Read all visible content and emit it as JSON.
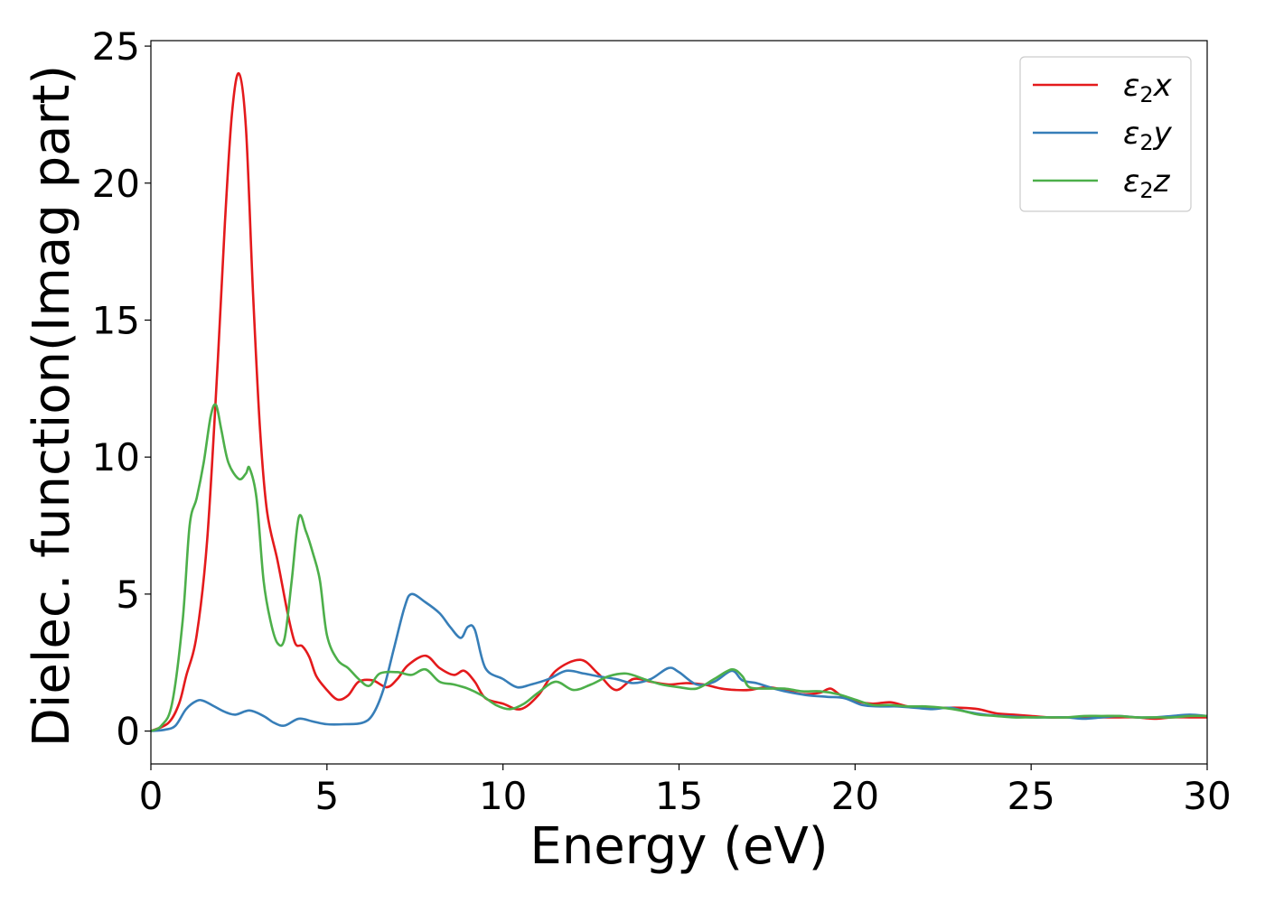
{
  "chart_data": {
    "type": "line",
    "xlabel": "Energy (eV)",
    "ylabel": "Dielec. function(Imag part)",
    "xlim": [
      0,
      30
    ],
    "ylim": [
      -1.2,
      25.2
    ],
    "xticks": [
      0,
      5,
      10,
      15,
      20,
      25,
      30
    ],
    "yticks": [
      0,
      5,
      10,
      15,
      20,
      25
    ],
    "grid": false,
    "legend_position": "top-right",
    "series": [
      {
        "name_main": "ε",
        "name_sub": "2",
        "name_suffix": "x",
        "color": "#e41a1c",
        "points": [
          [
            0,
            0
          ],
          [
            0.5,
            0.3
          ],
          [
            0.8,
            1.0
          ],
          [
            1.0,
            2.0
          ],
          [
            1.3,
            3.5
          ],
          [
            1.6,
            7.0
          ],
          [
            1.9,
            13.5
          ],
          [
            2.1,
            18.5
          ],
          [
            2.3,
            22.5
          ],
          [
            2.5,
            24.0
          ],
          [
            2.7,
            22.0
          ],
          [
            2.9,
            16.0
          ],
          [
            3.1,
            11.0
          ],
          [
            3.3,
            8.0
          ],
          [
            3.6,
            6.2
          ],
          [
            3.9,
            4.2
          ],
          [
            4.1,
            3.2
          ],
          [
            4.3,
            3.1
          ],
          [
            4.5,
            2.7
          ],
          [
            4.7,
            2.0
          ],
          [
            5.0,
            1.5
          ],
          [
            5.3,
            1.15
          ],
          [
            5.6,
            1.3
          ],
          [
            5.9,
            1.8
          ],
          [
            6.3,
            1.85
          ],
          [
            6.7,
            1.6
          ],
          [
            7.0,
            1.9
          ],
          [
            7.3,
            2.4
          ],
          [
            7.8,
            2.75
          ],
          [
            8.2,
            2.3
          ],
          [
            8.6,
            2.05
          ],
          [
            8.9,
            2.2
          ],
          [
            9.2,
            1.8
          ],
          [
            9.5,
            1.2
          ],
          [
            10.0,
            1.0
          ],
          [
            10.5,
            0.8
          ],
          [
            11.0,
            1.3
          ],
          [
            11.5,
            2.2
          ],
          [
            12.2,
            2.6
          ],
          [
            12.7,
            2.1
          ],
          [
            13.2,
            1.5
          ],
          [
            13.7,
            1.9
          ],
          [
            14.2,
            1.8
          ],
          [
            14.7,
            1.7
          ],
          [
            15.2,
            1.75
          ],
          [
            15.7,
            1.7
          ],
          [
            16.2,
            1.55
          ],
          [
            16.6,
            1.5
          ],
          [
            17.0,
            1.5
          ],
          [
            17.5,
            1.6
          ],
          [
            18.0,
            1.5
          ],
          [
            18.5,
            1.35
          ],
          [
            19.0,
            1.4
          ],
          [
            19.3,
            1.55
          ],
          [
            19.6,
            1.3
          ],
          [
            20.0,
            1.1
          ],
          [
            20.5,
            1.0
          ],
          [
            21.0,
            1.05
          ],
          [
            21.5,
            0.9
          ],
          [
            22.0,
            0.85
          ],
          [
            22.5,
            0.85
          ],
          [
            23.0,
            0.85
          ],
          [
            23.5,
            0.8
          ],
          [
            24.0,
            0.65
          ],
          [
            24.5,
            0.6
          ],
          [
            25.0,
            0.55
          ],
          [
            25.5,
            0.5
          ],
          [
            26.0,
            0.5
          ],
          [
            26.5,
            0.5
          ],
          [
            27.0,
            0.5
          ],
          [
            27.5,
            0.5
          ],
          [
            28.0,
            0.5
          ],
          [
            28.5,
            0.45
          ],
          [
            29.0,
            0.5
          ],
          [
            29.5,
            0.5
          ],
          [
            30.0,
            0.5
          ]
        ]
      },
      {
        "name_main": "ε",
        "name_sub": "2",
        "name_suffix": "y",
        "color": "#377eb8",
        "points": [
          [
            0,
            0
          ],
          [
            0.4,
            0.05
          ],
          [
            0.7,
            0.2
          ],
          [
            1.0,
            0.8
          ],
          [
            1.3,
            1.1
          ],
          [
            1.5,
            1.1
          ],
          [
            1.8,
            0.9
          ],
          [
            2.1,
            0.7
          ],
          [
            2.4,
            0.6
          ],
          [
            2.8,
            0.75
          ],
          [
            3.2,
            0.55
          ],
          [
            3.5,
            0.3
          ],
          [
            3.8,
            0.2
          ],
          [
            4.2,
            0.45
          ],
          [
            4.6,
            0.35
          ],
          [
            5.0,
            0.25
          ],
          [
            5.5,
            0.25
          ],
          [
            6.0,
            0.3
          ],
          [
            6.3,
            0.6
          ],
          [
            6.6,
            1.5
          ],
          [
            6.9,
            3.0
          ],
          [
            7.2,
            4.5
          ],
          [
            7.4,
            5.0
          ],
          [
            7.8,
            4.7
          ],
          [
            8.2,
            4.3
          ],
          [
            8.5,
            3.8
          ],
          [
            8.8,
            3.4
          ],
          [
            9.0,
            3.8
          ],
          [
            9.2,
            3.7
          ],
          [
            9.5,
            2.3
          ],
          [
            10.0,
            1.9
          ],
          [
            10.4,
            1.6
          ],
          [
            10.8,
            1.7
          ],
          [
            11.3,
            1.9
          ],
          [
            11.8,
            2.2
          ],
          [
            12.3,
            2.1
          ],
          [
            12.7,
            2.0
          ],
          [
            13.2,
            1.9
          ],
          [
            13.7,
            1.75
          ],
          [
            14.2,
            1.9
          ],
          [
            14.7,
            2.3
          ],
          [
            15.0,
            2.15
          ],
          [
            15.5,
            1.7
          ],
          [
            16.0,
            1.8
          ],
          [
            16.5,
            2.2
          ],
          [
            16.8,
            1.85
          ],
          [
            17.2,
            1.75
          ],
          [
            17.7,
            1.55
          ],
          [
            18.2,
            1.4
          ],
          [
            18.7,
            1.3
          ],
          [
            19.2,
            1.25
          ],
          [
            19.7,
            1.2
          ],
          [
            20.2,
            0.95
          ],
          [
            20.7,
            0.9
          ],
          [
            21.2,
            0.9
          ],
          [
            21.7,
            0.85
          ],
          [
            22.2,
            0.8
          ],
          [
            22.7,
            0.85
          ],
          [
            23.2,
            0.7
          ],
          [
            23.7,
            0.6
          ],
          [
            24.2,
            0.55
          ],
          [
            25.0,
            0.5
          ],
          [
            25.5,
            0.5
          ],
          [
            26.0,
            0.5
          ],
          [
            26.5,
            0.45
          ],
          [
            27.0,
            0.5
          ],
          [
            27.5,
            0.55
          ],
          [
            28.0,
            0.5
          ],
          [
            28.5,
            0.5
          ],
          [
            29.0,
            0.55
          ],
          [
            29.5,
            0.6
          ],
          [
            30.0,
            0.55
          ]
        ]
      },
      {
        "name_main": "ε",
        "name_sub": "2",
        "name_suffix": "z",
        "color": "#4daf4a",
        "points": [
          [
            0,
            0
          ],
          [
            0.3,
            0.2
          ],
          [
            0.6,
            1.0
          ],
          [
            0.9,
            4.0
          ],
          [
            1.1,
            7.5
          ],
          [
            1.3,
            8.5
          ],
          [
            1.5,
            9.8
          ],
          [
            1.7,
            11.5
          ],
          [
            1.85,
            11.9
          ],
          [
            2.0,
            11.0
          ],
          [
            2.2,
            9.8
          ],
          [
            2.5,
            9.2
          ],
          [
            2.7,
            9.4
          ],
          [
            2.8,
            9.6
          ],
          [
            3.0,
            8.5
          ],
          [
            3.2,
            5.5
          ],
          [
            3.4,
            4.0
          ],
          [
            3.6,
            3.2
          ],
          [
            3.8,
            3.4
          ],
          [
            4.0,
            5.5
          ],
          [
            4.2,
            7.8
          ],
          [
            4.4,
            7.3
          ],
          [
            4.6,
            6.5
          ],
          [
            4.8,
            5.5
          ],
          [
            5.0,
            3.5
          ],
          [
            5.3,
            2.6
          ],
          [
            5.6,
            2.3
          ],
          [
            5.9,
            1.9
          ],
          [
            6.2,
            1.65
          ],
          [
            6.5,
            2.1
          ],
          [
            7.0,
            2.15
          ],
          [
            7.4,
            2.05
          ],
          [
            7.8,
            2.25
          ],
          [
            8.2,
            1.8
          ],
          [
            8.6,
            1.7
          ],
          [
            9.0,
            1.55
          ],
          [
            9.4,
            1.3
          ],
          [
            9.8,
            0.95
          ],
          [
            10.2,
            0.8
          ],
          [
            10.6,
            1.0
          ],
          [
            11.0,
            1.4
          ],
          [
            11.5,
            1.8
          ],
          [
            12.0,
            1.5
          ],
          [
            12.5,
            1.7
          ],
          [
            13.0,
            2.0
          ],
          [
            13.5,
            2.1
          ],
          [
            14.0,
            1.9
          ],
          [
            14.5,
            1.7
          ],
          [
            15.0,
            1.6
          ],
          [
            15.5,
            1.55
          ],
          [
            16.0,
            1.9
          ],
          [
            16.5,
            2.25
          ],
          [
            16.8,
            2.0
          ],
          [
            17.0,
            1.6
          ],
          [
            17.5,
            1.55
          ],
          [
            18.0,
            1.55
          ],
          [
            18.5,
            1.45
          ],
          [
            19.0,
            1.45
          ],
          [
            19.5,
            1.35
          ],
          [
            20.0,
            1.15
          ],
          [
            20.5,
            0.95
          ],
          [
            21.0,
            0.95
          ],
          [
            21.5,
            0.9
          ],
          [
            22.0,
            0.9
          ],
          [
            22.5,
            0.85
          ],
          [
            23.0,
            0.75
          ],
          [
            23.5,
            0.6
          ],
          [
            24.0,
            0.55
          ],
          [
            24.5,
            0.5
          ],
          [
            25.0,
            0.5
          ],
          [
            25.5,
            0.5
          ],
          [
            26.0,
            0.5
          ],
          [
            26.5,
            0.55
          ],
          [
            27.0,
            0.55
          ],
          [
            27.5,
            0.55
          ],
          [
            28.0,
            0.5
          ],
          [
            28.5,
            0.5
          ],
          [
            29.0,
            0.5
          ],
          [
            29.5,
            0.55
          ],
          [
            30.0,
            0.55
          ]
        ]
      }
    ]
  }
}
